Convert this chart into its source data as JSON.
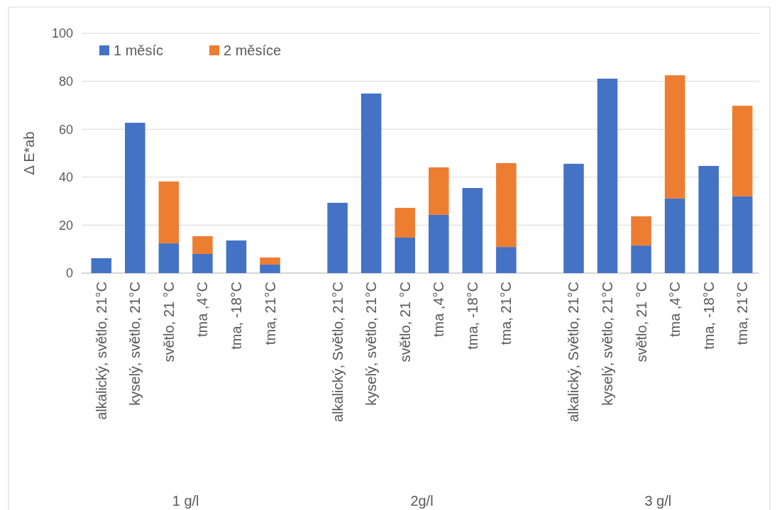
{
  "chart_data": {
    "type": "bar",
    "stacked": true,
    "ylabel": "Δ E*ab",
    "ylim": [
      0,
      100
    ],
    "yticks": [
      0,
      20,
      40,
      60,
      80,
      100
    ],
    "grid": "y",
    "legend": "top left",
    "categories": [
      "alkalický, světlo, 21°C",
      "kyselý, světlo, 21°C",
      "světlo, 21 °C",
      "tma ,4°C",
      "tma, -18°C",
      "tma, 21°C",
      null,
      "alkalický, Světlo, 21°C",
      "kyselý, světlo, 21°C",
      "světlo, 21 °C",
      "tma ,4°C",
      "tma, -18°C",
      "tma, 21°C",
      null,
      "alkalický, Světlo, 21°C",
      "kyselý, světlo, 21°C",
      "světlo, 21 °C",
      "tma ,4°C",
      "tma, -18°C",
      "tma, 21°C"
    ],
    "series": [
      {
        "name": "1 měsíc",
        "color": "#4472c4",
        "values": [
          6.2,
          62.7,
          12.4,
          8.0,
          13.6,
          3.6,
          null,
          29.3,
          74.9,
          14.8,
          24.3,
          35.5,
          10.9,
          null,
          45.6,
          81.1,
          11.5,
          31.1,
          44.7,
          32.0
        ]
      },
      {
        "name": "2 měsíce",
        "color": "#ed7d31",
        "values": [
          null,
          null,
          25.8,
          7.4,
          null,
          2.9,
          null,
          null,
          null,
          12.4,
          19.8,
          null,
          35.0,
          null,
          null,
          null,
          12.2,
          51.4,
          null,
          37.8
        ]
      }
    ],
    "annotations": [
      "1 g/l",
      "2g/l",
      "3 g/l"
    ]
  }
}
